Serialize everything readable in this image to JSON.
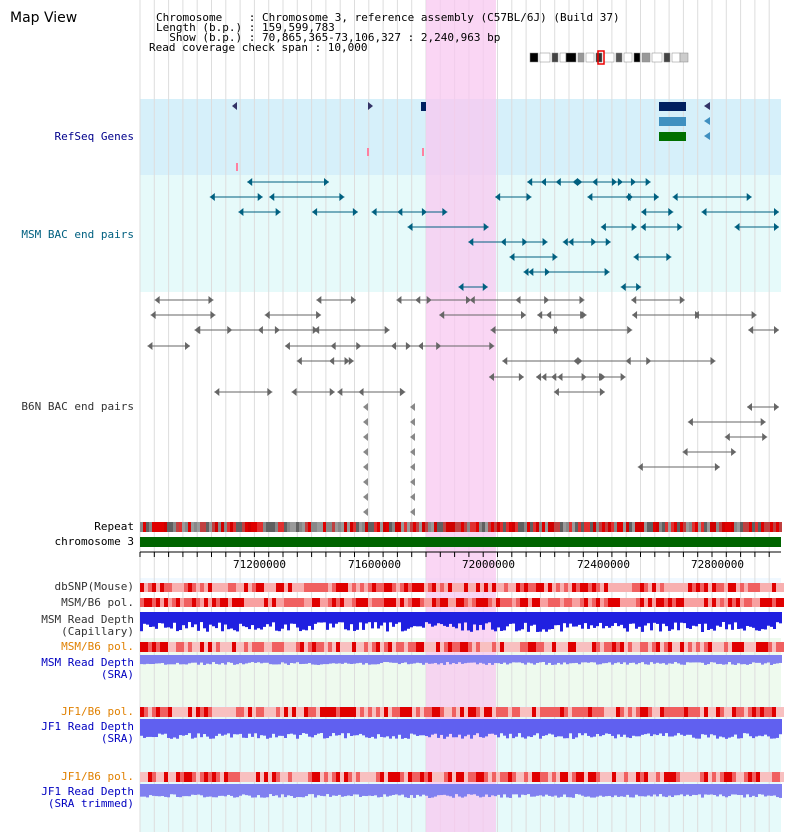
{
  "title": "Map View",
  "info": {
    "chromosome_label": "Chromosome    : Chromosome 3, reference assembly (C57BL/6J) (Build 37)",
    "length_label": "Length (b.p.) : 159,599,783",
    "show_label": "  Show (b.p.) : 70,865,365-73,106,327 : 2,240,963 bp",
    "coverage_label": "Read coverage check span : 10,000"
  },
  "tracks": {
    "refseq": "RefSeq Genes",
    "msm_bac": "MSM BAC end pairs",
    "b6n_bac": "B6N BAC end pairs",
    "repeat": "Repeat",
    "chromosome": "chromosome 3",
    "dbsnp": "dbSNP(Mouse)",
    "msm_b6_pol": "MSM/B6 pol.",
    "msm_read_depth_cap_1": "MSM Read Depth",
    "msm_read_depth_cap_2": "(Capillary)",
    "msm_b6_pol_2": "MSM/B6 pol.",
    "msm_read_depth_sra_1": "MSM Read Depth",
    "msm_read_depth_sra_2": "(SRA)",
    "jf1_b6_pol": "JF1/B6 pol.",
    "jf1_read_depth_sra_1": "JF1 Read Depth",
    "jf1_read_depth_sra_2": "(SRA)",
    "jf1_b6_pol_2": "JF1/B6 pol.",
    "jf1_read_depth_trim_1": "JF1 Read Depth",
    "jf1_read_depth_trim_2": "(SRA trimmed)"
  },
  "axis": {
    "ticks": [
      "71200000",
      "71600000",
      "72000000",
      "72400000",
      "72800000"
    ]
  },
  "colors": {
    "refseq_label": "#00008b",
    "msm_label": "#006080",
    "b6n_label": "#333333",
    "orange_label": "#e08000",
    "blue_label": "#0000c0",
    "highlight": "#f8c8f0",
    "chromosome_bar": "#006400"
  }
}
